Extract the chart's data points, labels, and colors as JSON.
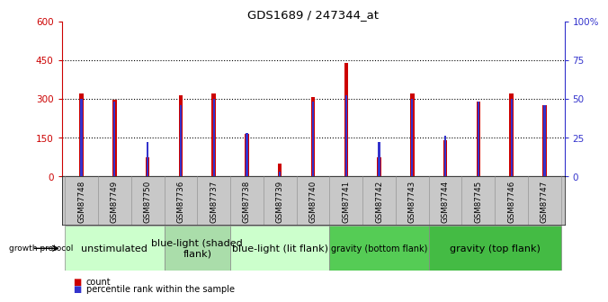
{
  "title": "GDS1689 / 247344_at",
  "samples": [
    "GSM87748",
    "GSM87749",
    "GSM87750",
    "GSM87736",
    "GSM87737",
    "GSM87738",
    "GSM87739",
    "GSM87740",
    "GSM87741",
    "GSM87742",
    "GSM87743",
    "GSM87744",
    "GSM87745",
    "GSM87746",
    "GSM87747"
  ],
  "counts": [
    320,
    295,
    75,
    315,
    320,
    165,
    50,
    305,
    440,
    75,
    320,
    140,
    290,
    320,
    275
  ],
  "percentiles": [
    50,
    48,
    22,
    46,
    50,
    28,
    3,
    48,
    52,
    22,
    50,
    26,
    48,
    50,
    46
  ],
  "groups": [
    {
      "label": "unstimulated",
      "start": 0,
      "end": 3,
      "color": "#ccffcc"
    },
    {
      "label": "blue-light (shaded\nflank)",
      "start": 3,
      "end": 5,
      "color": "#aaddaa"
    },
    {
      "label": "blue-light (lit flank)",
      "start": 5,
      "end": 8,
      "color": "#ccffcc"
    },
    {
      "label": "gravity (bottom flank)",
      "start": 8,
      "end": 11,
      "color": "#55cc55"
    },
    {
      "label": "gravity (top flank)",
      "start": 11,
      "end": 15,
      "color": "#44bb44"
    }
  ],
  "ylim_left": [
    0,
    600
  ],
  "ylim_right": [
    0,
    100
  ],
  "yticks_left": [
    0,
    150,
    300,
    450,
    600
  ],
  "yticks_right": [
    0,
    25,
    50,
    75,
    100
  ],
  "ytick_labels_right": [
    "0",
    "25",
    "50",
    "75",
    "100%"
  ],
  "bar_color_count": "#cc0000",
  "bar_color_pct": "#3333cc",
  "grid_yticks": [
    150,
    300,
    450
  ],
  "legend_count": "count",
  "legend_pct": "percentile rank within the sample",
  "growth_protocol_label": "growth protocol"
}
